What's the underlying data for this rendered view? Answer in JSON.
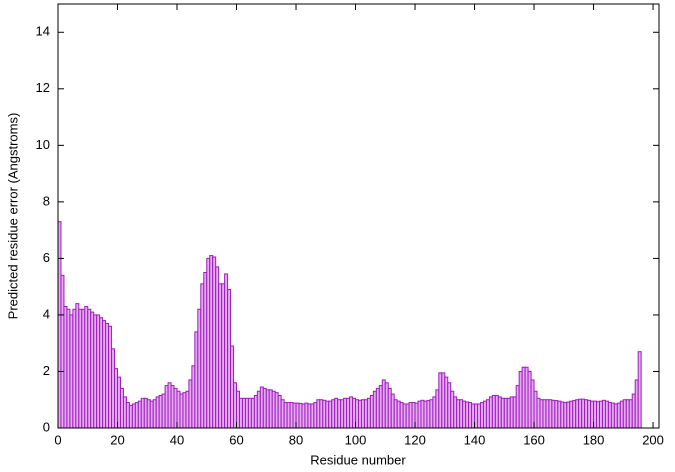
{
  "chart_data": {
    "type": "histogram",
    "xlabel": "Residue number",
    "ylabel": "Predicted residue error (Angstroms)",
    "color": "#e8a8f4",
    "edge_color": "#9a1fb8",
    "xlim": [
      0,
      202
    ],
    "ylim": [
      0,
      15
    ],
    "xticks": [
      0,
      20,
      40,
      60,
      80,
      100,
      120,
      140,
      160,
      180,
      200
    ],
    "yticks": [
      0,
      2,
      4,
      6,
      8,
      10,
      12,
      14
    ],
    "bins": [
      0,
      1,
      2,
      3,
      4,
      5,
      6,
      7,
      8,
      9,
      10,
      11,
      12,
      13,
      14,
      15,
      16,
      17,
      18,
      19,
      20,
      21,
      22,
      23,
      24,
      25,
      26,
      27,
      28,
      29,
      30,
      31,
      32,
      33,
      34,
      35,
      36,
      37,
      38,
      39,
      40,
      41,
      42,
      43,
      44,
      45,
      46,
      47,
      48,
      49,
      50,
      51,
      52,
      53,
      54,
      55,
      56,
      57,
      58,
      59,
      60,
      61,
      62,
      63,
      64,
      65,
      66,
      67,
      68,
      69,
      70,
      71,
      72,
      73,
      74,
      75,
      76,
      77,
      78,
      79,
      80,
      81,
      82,
      83,
      84,
      85,
      86,
      87,
      88,
      89,
      90,
      91,
      92,
      93,
      94,
      95,
      96,
      97,
      98,
      99,
      100,
      101,
      102,
      103,
      104,
      105,
      106,
      107,
      108,
      109,
      110,
      111,
      112,
      113,
      114,
      115,
      116,
      117,
      118,
      119,
      120,
      121,
      122,
      123,
      124,
      125,
      126,
      127,
      128,
      129,
      130,
      131,
      132,
      133,
      134,
      135,
      136,
      137,
      138,
      139,
      140,
      141,
      142,
      143,
      144,
      145,
      146,
      147,
      148,
      149,
      150,
      151,
      152,
      153,
      154,
      155,
      156,
      157,
      158,
      159,
      160,
      161,
      162,
      163,
      164,
      165,
      166,
      167,
      168,
      169,
      170,
      171,
      172,
      173,
      174,
      175,
      176,
      177,
      178,
      179,
      180,
      181,
      182,
      183,
      184,
      185,
      186,
      187,
      188,
      189,
      190,
      191,
      192,
      193,
      194,
      195,
      196
    ],
    "values": [
      7.3,
      5.4,
      4.3,
      4.2,
      4.0,
      4.2,
      4.4,
      4.2,
      4.2,
      4.3,
      4.2,
      4.1,
      4.0,
      4.0,
      3.9,
      3.8,
      3.7,
      3.6,
      2.8,
      2.1,
      1.8,
      1.4,
      1.1,
      0.9,
      0.8,
      0.85,
      0.9,
      0.95,
      1.05,
      1.05,
      1.0,
      0.95,
      1.0,
      1.1,
      1.15,
      1.2,
      1.5,
      1.6,
      1.5,
      1.4,
      1.3,
      1.2,
      1.25,
      1.3,
      1.7,
      2.2,
      3.4,
      4.2,
      5.1,
      5.5,
      6.0,
      6.1,
      6.05,
      5.7,
      5.1,
      5.1,
      5.45,
      4.9,
      2.9,
      1.6,
      1.3,
      1.05,
      1.05,
      1.05,
      1.05,
      1.05,
      1.15,
      1.3,
      1.45,
      1.4,
      1.35,
      1.35,
      1.3,
      1.25,
      1.15,
      1.0,
      0.9,
      0.9,
      0.9,
      0.88,
      0.88,
      0.87,
      0.85,
      0.88,
      0.85,
      0.85,
      0.9,
      1.0,
      1.0,
      0.98,
      0.95,
      0.95,
      1.0,
      1.05,
      1.0,
      1.0,
      1.05,
      1.05,
      1.1,
      1.05,
      1.0,
      0.98,
      1.0,
      1.0,
      1.05,
      1.15,
      1.3,
      1.4,
      1.5,
      1.7,
      1.6,
      1.4,
      1.2,
      1.0,
      0.95,
      0.9,
      0.85,
      0.85,
      0.9,
      0.9,
      0.88,
      0.95,
      0.98,
      0.95,
      0.97,
      1.0,
      1.1,
      1.35,
      1.95,
      1.95,
      1.8,
      1.6,
      1.3,
      1.1,
      1.0,
      1.0,
      0.95,
      0.92,
      0.9,
      0.85,
      0.85,
      0.85,
      0.9,
      0.95,
      1.0,
      1.1,
      1.15,
      1.15,
      1.1,
      1.05,
      1.05,
      1.05,
      1.1,
      1.1,
      1.5,
      2.0,
      2.15,
      2.15,
      2.0,
      1.7,
      1.3,
      1.05,
      1.0,
      1.0,
      1.0,
      1.0,
      0.98,
      0.97,
      0.95,
      0.92,
      0.9,
      0.92,
      0.95,
      0.97,
      1.0,
      1.02,
      1.02,
      1.0,
      0.98,
      0.95,
      0.95,
      0.93,
      0.95,
      0.98,
      0.95,
      0.9,
      0.88,
      0.85,
      0.88,
      0.95,
      1.0,
      1.0,
      1.0,
      1.2,
      1.7,
      2.7
    ]
  }
}
